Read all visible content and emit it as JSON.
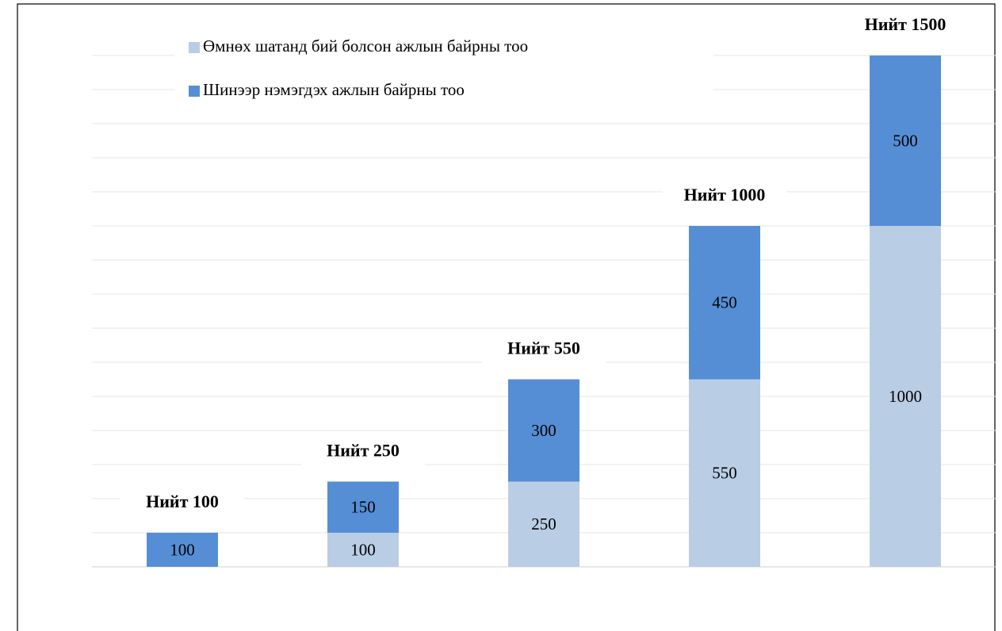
{
  "chart_data": {
    "type": "stacked_bar",
    "categories": [
      null,
      null,
      null,
      null,
      null
    ],
    "series": [
      {
        "name": "Өмнөх шатанд бий болсон ажлын байрны тоо",
        "color": "#b9cde5",
        "values": [
          null,
          100,
          250,
          550,
          1000
        ]
      },
      {
        "name": "Шинээр нэмэгдэх ажлын байрны тоо",
        "color": "#558ed5",
        "values": [
          100,
          150,
          300,
          450,
          500
        ]
      }
    ],
    "annotations": [
      "Нийт 100",
      "Нийт 250",
      "Нийт 550",
      "Нийт 1000",
      "Нийт 1500"
    ],
    "ylim": [
      0,
      1500
    ],
    "yticks": [
      0,
      100,
      200,
      300,
      400,
      500,
      600,
      700,
      800,
      900,
      1000,
      1100,
      1200,
      1300,
      1400,
      1500
    ],
    "grid": true,
    "legend": "top-left"
  }
}
